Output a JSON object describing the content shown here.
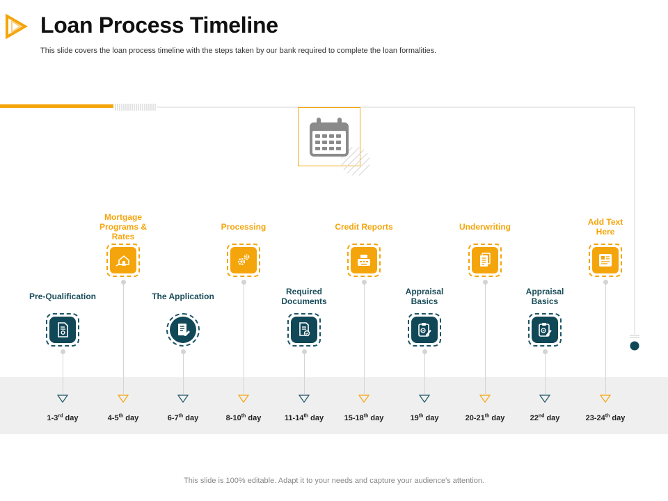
{
  "header": {
    "title": "Loan Process Timeline",
    "subtitle": "This slide covers the loan process timeline with the steps taken by our bank required to complete the loan formalities."
  },
  "footer": {
    "text": "This slide is 100% editable. Adapt it to your needs and capture your audience's attention."
  },
  "colors": {
    "orange": "#f5a50c",
    "teal": "#114858",
    "line": "#d4d4d4",
    "band": "#efefef"
  },
  "timeline": {
    "hub_icon": "calendar-icon",
    "steps": [
      {
        "label": "Pre-Qualification",
        "day_main": "1-3",
        "day_sup": "rd",
        "day_suffix": " day",
        "tone": "teal",
        "icon": "certificate-icon"
      },
      {
        "label": "Mortgage Programs & Rates",
        "day_main": "4-5",
        "day_sup": "th",
        "day_suffix": " day",
        "tone": "orange",
        "icon": "house-hand-icon"
      },
      {
        "label": "The Application",
        "day_main": "6-7",
        "day_sup": "th",
        "day_suffix": " day",
        "tone": "teal",
        "icon": "document-pen-icon"
      },
      {
        "label": "Processing",
        "day_main": "8-10",
        "day_sup": "th",
        "day_suffix": " day",
        "tone": "orange",
        "icon": "gears-icon"
      },
      {
        "label": "Required Documents",
        "day_main": "11-14",
        "day_sup": "th",
        "day_suffix": " day",
        "tone": "teal",
        "icon": "document-check-icon"
      },
      {
        "label": "Credit Reports",
        "day_main": "15-18",
        "day_sup": "th",
        "day_suffix": " day",
        "tone": "orange",
        "icon": "cash-register-icon"
      },
      {
        "label": "Appraisal Basics",
        "day_main": "19",
        "day_sup": "th",
        "day_suffix": " day",
        "tone": "teal",
        "icon": "clipboard-pen-icon"
      },
      {
        "label": "Underwriting",
        "day_main": "20-21",
        "day_sup": "th",
        "day_suffix": " day",
        "tone": "orange",
        "icon": "papers-icon"
      },
      {
        "label": "Appraisal Basics",
        "day_main": "22",
        "day_sup": "nd",
        "day_suffix": " day",
        "tone": "teal",
        "icon": "clipboard-pen-icon"
      },
      {
        "label": "Add Text Here",
        "day_main": "23-24",
        "day_sup": "th",
        "day_suffix": " day",
        "tone": "orange",
        "icon": "article-icon"
      }
    ]
  }
}
